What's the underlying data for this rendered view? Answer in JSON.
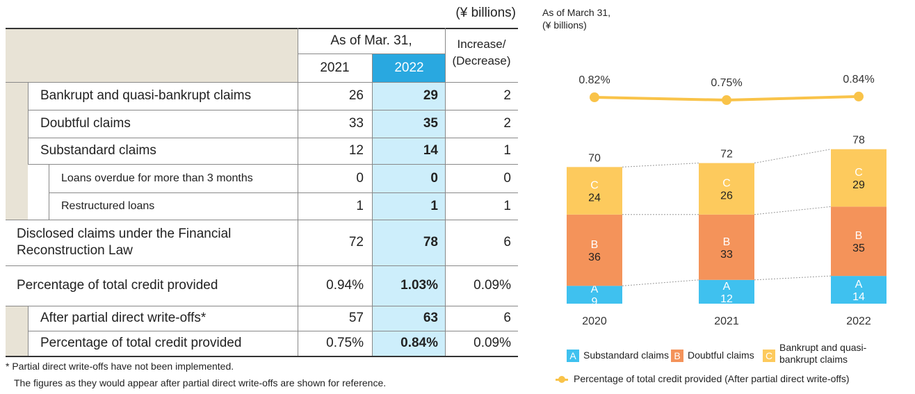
{
  "table": {
    "unit": "(¥ billions)",
    "header": {
      "group": "As of Mar. 31,",
      "years": [
        "2021",
        "2022"
      ],
      "change": [
        "Increase/",
        "(Decrease)"
      ]
    },
    "rows": [
      {
        "label": "Bankrupt and quasi-bankrupt claims",
        "cells": [
          "26",
          "29",
          "2"
        ]
      },
      {
        "label": "Doubtful claims",
        "cells": [
          "33",
          "35",
          "2"
        ]
      },
      {
        "label": "Substandard claims",
        "cells": [
          "12",
          "14",
          "1"
        ]
      },
      {
        "label": "Loans overdue for more than 3 months",
        "cells": [
          "0",
          "0",
          "0"
        ]
      },
      {
        "label": "Restructured loans",
        "cells": [
          "1",
          "1",
          "1"
        ]
      },
      {
        "label": "Disclosed claims under the Financial Reconstruction Law",
        "cells": [
          "72",
          "78",
          "6"
        ]
      },
      {
        "label": "Percentage of total credit provided",
        "cells": [
          "0.94%",
          "1.03%",
          "0.09%"
        ]
      },
      {
        "label": "After partial direct write-offs*",
        "cells": [
          "57",
          "63",
          "6"
        ]
      },
      {
        "label": "Percentage of total credit provided",
        "cells": [
          "0.75%",
          "0.84%",
          "0.09%"
        ]
      }
    ],
    "footnote": [
      "* Partial direct write-offs have not been implemented.",
      "The figures as they would appear after partial direct write-offs are shown for reference."
    ]
  },
  "chart_data": {
    "type": "bar",
    "stacked": true,
    "subtitle": [
      "As of March 31,",
      "(¥ billions)"
    ],
    "categories": [
      "2020",
      "2021",
      "2022"
    ],
    "series": [
      {
        "name": "Substandard claims",
        "letter": "A",
        "color": "#3fc1ef",
        "values": [
          9,
          12,
          14
        ]
      },
      {
        "name": "Doubtful claims",
        "letter": "B",
        "color": "#f4935a",
        "values": [
          36,
          33,
          35
        ]
      },
      {
        "name": "Bankrupt and quasi-bankrupt claims",
        "letter": "C",
        "color": "#fdca5d",
        "values": [
          24,
          26,
          29
        ]
      }
    ],
    "totals": [
      70,
      72,
      78
    ],
    "line": {
      "name": "Percentage of total credit provided (After partial direct write-offs)",
      "color": "#f9c349",
      "values": [
        0.82,
        0.75,
        0.84
      ],
      "value_labels": [
        "0.82%",
        "0.75%",
        "0.84%"
      ]
    }
  }
}
